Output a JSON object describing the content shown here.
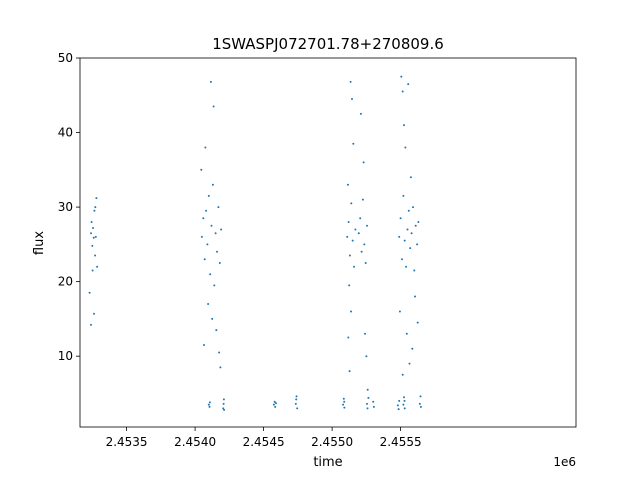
{
  "chart_data": {
    "type": "scatter",
    "title": "1SWASPJ072701.78+270809.6",
    "xlabel": "time",
    "ylabel": "flux",
    "x_offset_label": "1e6",
    "xlim": [
      2453160,
      2456780
    ],
    "ylim": [
      0.5,
      50
    ],
    "x_ticks": [
      2453500,
      2454000,
      2454500,
      2455000,
      2455500
    ],
    "x_tick_labels": [
      "2.4535",
      "2.4540",
      "2.4545",
      "2.4550",
      "2.4555"
    ],
    "y_ticks": [
      10,
      20,
      30,
      40,
      50
    ],
    "y_tick_labels": [
      "10",
      "20",
      "30",
      "40",
      "50"
    ],
    "grid": false,
    "legend": "none",
    "marker_color": "#1f77b4",
    "series": [
      {
        "values": [
          [
            2453240,
            26.5
          ],
          [
            2453245,
            28.0
          ],
          [
            2453250,
            24.8
          ],
          [
            2453255,
            27.2
          ],
          [
            2453260,
            25.9
          ],
          [
            2453265,
            29.5
          ],
          [
            2453270,
            23.5
          ],
          [
            2453275,
            26.0
          ],
          [
            2453280,
            31.2
          ],
          [
            2453285,
            22.0
          ],
          [
            2453230,
            18.5
          ],
          [
            2453240,
            14.2
          ],
          [
            2453262,
            15.7
          ],
          [
            2453252,
            21.5
          ],
          [
            2453272,
            30.0
          ],
          [
            2454050,
            26.0
          ],
          [
            2454060,
            28.5
          ],
          [
            2454070,
            23.0
          ],
          [
            2454080,
            29.5
          ],
          [
            2454090,
            25.0
          ],
          [
            2454100,
            31.5
          ],
          [
            2454110,
            21.0
          ],
          [
            2454120,
            27.5
          ],
          [
            2454130,
            33.0
          ],
          [
            2454140,
            19.5
          ],
          [
            2454150,
            26.5
          ],
          [
            2454160,
            24.0
          ],
          [
            2454170,
            30.0
          ],
          [
            2454180,
            22.5
          ],
          [
            2454190,
            27.0
          ],
          [
            2454045,
            35.0
          ],
          [
            2454075,
            38.0
          ],
          [
            2454115,
            46.8
          ],
          [
            2454135,
            43.5
          ],
          [
            2454095,
            17.0
          ],
          [
            2454155,
            13.5
          ],
          [
            2454175,
            10.5
          ],
          [
            2454185,
            8.5
          ],
          [
            2454065,
            11.5
          ],
          [
            2454125,
            15.0
          ],
          [
            2454100,
            3.5
          ],
          [
            2454105,
            3.2
          ],
          [
            2454108,
            3.8
          ],
          [
            2454205,
            3.0
          ],
          [
            2454210,
            4.2
          ],
          [
            2454212,
            2.8
          ],
          [
            2454208,
            3.6
          ],
          [
            2454575,
            3.5
          ],
          [
            2454580,
            3.9
          ],
          [
            2454585,
            3.2
          ],
          [
            2454590,
            3.7
          ],
          [
            2454735,
            3.6
          ],
          [
            2454740,
            4.6
          ],
          [
            2454745,
            3.0
          ],
          [
            2454738,
            4.2
          ],
          [
            2455080,
            3.5
          ],
          [
            2455085,
            4.3
          ],
          [
            2455090,
            3.1
          ],
          [
            2455088,
            3.9
          ],
          [
            2455110,
            26.0
          ],
          [
            2455120,
            28.0
          ],
          [
            2455130,
            23.5
          ],
          [
            2455140,
            30.5
          ],
          [
            2455150,
            25.5
          ],
          [
            2455160,
            22.0
          ],
          [
            2455170,
            27.0
          ],
          [
            2455115,
            33.0
          ],
          [
            2455125,
            19.5
          ],
          [
            2455135,
            46.8
          ],
          [
            2455145,
            44.5
          ],
          [
            2455155,
            38.5
          ],
          [
            2455118,
            12.5
          ],
          [
            2455128,
            8.0
          ],
          [
            2455138,
            16.0
          ],
          [
            2455195,
            26.5
          ],
          [
            2455205,
            28.5
          ],
          [
            2455215,
            24.0
          ],
          [
            2455225,
            31.0
          ],
          [
            2455235,
            25.0
          ],
          [
            2455245,
            22.5
          ],
          [
            2455255,
            27.5
          ],
          [
            2455210,
            42.5
          ],
          [
            2455230,
            36.0
          ],
          [
            2455240,
            13.0
          ],
          [
            2455250,
            10.0
          ],
          [
            2455255,
            3.6
          ],
          [
            2455260,
            5.5
          ],
          [
            2455265,
            4.4
          ],
          [
            2455258,
            3.0
          ],
          [
            2455300,
            3.9
          ],
          [
            2455305,
            3.2
          ],
          [
            2455480,
            3.4
          ],
          [
            2455485,
            2.9
          ],
          [
            2455490,
            4.0
          ],
          [
            2455490,
            26.0
          ],
          [
            2455500,
            28.5
          ],
          [
            2455510,
            23.0
          ],
          [
            2455520,
            31.5
          ],
          [
            2455530,
            25.5
          ],
          [
            2455540,
            22.0
          ],
          [
            2455550,
            27.0
          ],
          [
            2455560,
            29.5
          ],
          [
            2455570,
            24.5
          ],
          [
            2455580,
            26.5
          ],
          [
            2455590,
            30.0
          ],
          [
            2455600,
            21.5
          ],
          [
            2455610,
            27.5
          ],
          [
            2455620,
            25.0
          ],
          [
            2455630,
            28.0
          ],
          [
            2455505,
            47.5
          ],
          [
            2455515,
            45.5
          ],
          [
            2455525,
            41.0
          ],
          [
            2455555,
            46.5
          ],
          [
            2455575,
            34.0
          ],
          [
            2455535,
            38.0
          ],
          [
            2455495,
            16.0
          ],
          [
            2455545,
            13.0
          ],
          [
            2455565,
            9.0
          ],
          [
            2455585,
            11.0
          ],
          [
            2455605,
            18.0
          ],
          [
            2455625,
            14.5
          ],
          [
            2455515,
            7.5
          ],
          [
            2455520,
            3.5
          ],
          [
            2455525,
            4.5
          ],
          [
            2455530,
            3.0
          ],
          [
            2455528,
            4.0
          ],
          [
            2455640,
            3.6
          ],
          [
            2455645,
            4.6
          ],
          [
            2455648,
            3.2
          ]
        ]
      }
    ]
  }
}
